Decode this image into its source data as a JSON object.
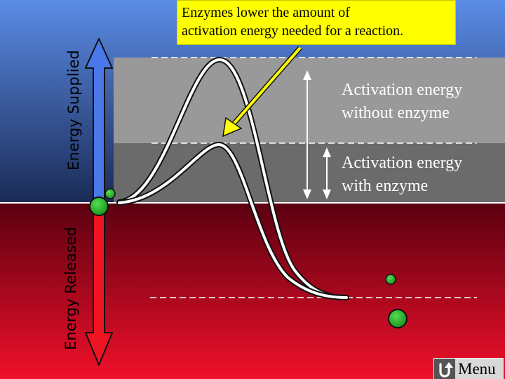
{
  "callout": {
    "line1": "Enzymes lower the amount of",
    "line2": "activation energy needed for a reaction."
  },
  "axis": {
    "supplied_label": "Energy Supplied",
    "released_label": "Energy Released"
  },
  "labels": {
    "without_line1": "Activation energy",
    "without_line2": "without enzyme",
    "with_line1": "Activation energy",
    "with_line2": "with enzyme"
  },
  "menu": {
    "label": "Menu",
    "icon": "return-arrow-icon"
  },
  "colors": {
    "supplied_top": "#5b8ce6",
    "supplied_bottom": "#1a2a55",
    "released_top": "#5a0010",
    "released_bottom": "#f0102a",
    "band_without": "#999999",
    "band_with": "#6b6b6b",
    "callout_bg": "#ffff00",
    "arrow_up": "#4a78e8",
    "arrow_down": "#ee1422",
    "molecule": "#22aa22"
  }
}
